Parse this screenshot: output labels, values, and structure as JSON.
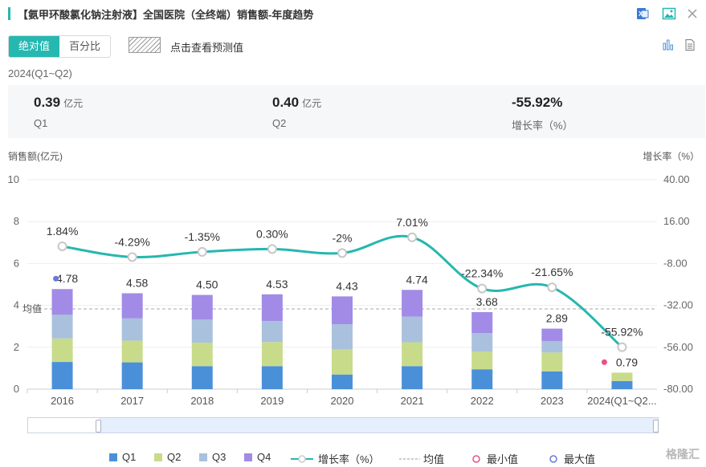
{
  "header": {
    "title": "【氨甲环酸氯化钠注射液】全国医院（全终端）销售额-年度趋势"
  },
  "toolbar": {
    "tab_absolute": "绝对值",
    "tab_percent": "百分比",
    "forecast_label": "点击查看预测值"
  },
  "summary": {
    "period": "2024(Q1~Q2)",
    "q1_value": "0.39",
    "q1_unit": "亿元",
    "q1_label": "Q1",
    "q2_value": "0.40",
    "q2_unit": "亿元",
    "q2_label": "Q2",
    "growth_value": "-55.92%",
    "growth_label": "增长率（%）"
  },
  "legend": {
    "q1": "Q1",
    "q2": "Q2",
    "q3": "Q3",
    "q4": "Q4",
    "growth": "增长率（%）",
    "avg": "均值",
    "min": "最小值",
    "max": "最大值"
  },
  "watermark": "格隆汇",
  "colors": {
    "q1": "#4a90d9",
    "q2": "#c8db8a",
    "q3": "#a9c1dc",
    "q4": "#a28be6",
    "line": "#26b7b0",
    "min": "#e8508a",
    "max": "#6a78d8",
    "accent": "#26b7b0"
  },
  "chart_data": {
    "type": "bar",
    "ylabel": "销售额(亿元)",
    "y2label": "增长率（%）",
    "ylim": [
      0,
      10
    ],
    "yticks": [
      "0",
      "2",
      "4",
      "6",
      "8",
      "10"
    ],
    "y2lim": [
      -80,
      40
    ],
    "y2ticks": [
      "-80.00",
      "-56.00",
      "-32.00",
      "-8.00",
      "16.00",
      "40.00"
    ],
    "categories": [
      "2016",
      "2017",
      "2018",
      "2019",
      "2020",
      "2021",
      "2022",
      "2023",
      "2024(Q1~Q2..."
    ],
    "series": [
      {
        "name": "Q1",
        "values": [
          1.3,
          1.28,
          1.1,
          1.1,
          0.7,
          1.1,
          0.95,
          0.85,
          0.39
        ]
      },
      {
        "name": "Q2",
        "values": [
          1.12,
          1.04,
          1.12,
          1.15,
          1.2,
          1.14,
          0.85,
          0.9,
          0.4
        ]
      },
      {
        "name": "Q3",
        "values": [
          1.13,
          1.06,
          1.1,
          1.0,
          1.2,
          1.22,
          0.88,
          0.55,
          0
        ]
      },
      {
        "name": "Q4",
        "values": [
          1.23,
          1.2,
          1.18,
          1.28,
          1.33,
          1.28,
          1.0,
          0.59,
          0
        ]
      }
    ],
    "totals": [
      "4.78",
      "4.58",
      "4.50",
      "4.53",
      "4.43",
      "4.74",
      "3.68",
      "2.89",
      "0.79"
    ],
    "growth": {
      "name": "增长率（%）",
      "values": [
        1.84,
        -4.29,
        -1.35,
        0.3,
        -2,
        7.01,
        -22.34,
        -21.65,
        -55.92
      ],
      "labels": [
        "1.84%",
        "-4.29%",
        "-1.35%",
        "0.30%",
        "-2%",
        "7.01%",
        "-22.34%",
        "-21.65%",
        "-55.92%"
      ]
    },
    "average": {
      "value": 3.83,
      "label": "均值"
    },
    "max_index": 0,
    "min_index": 8
  }
}
